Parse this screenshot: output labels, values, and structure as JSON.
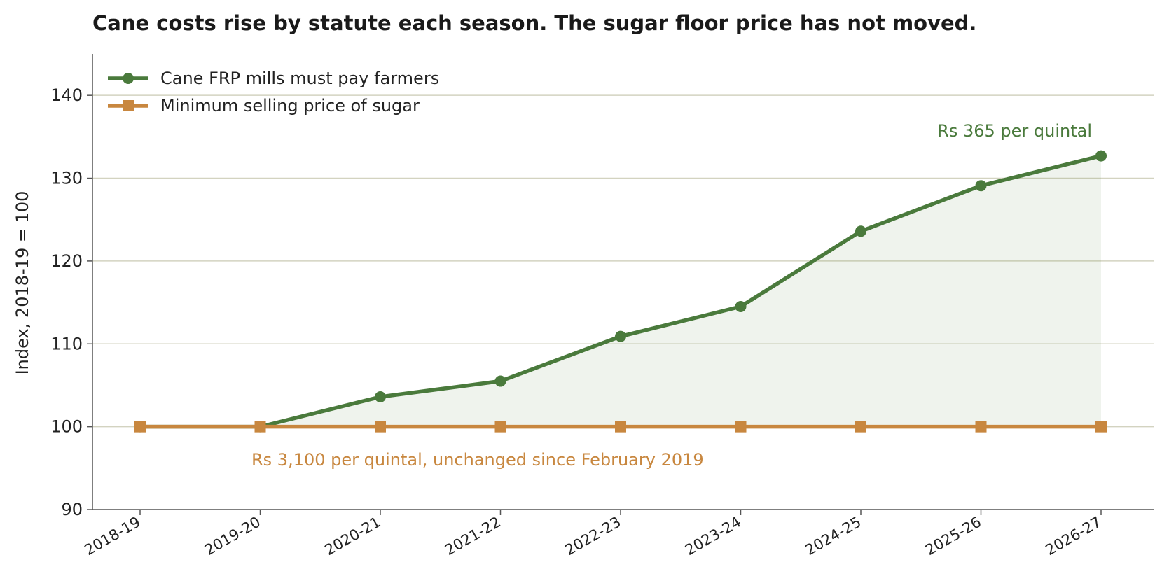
{
  "chart_data": {
    "type": "line",
    "title": "Cane costs rise by statute each season. The sugar floor price has not moved.",
    "xlabel": "",
    "ylabel": "Index, 2018-19 = 100",
    "categories": [
      "2018-19",
      "2019-20",
      "2020-21",
      "2021-22",
      "2022-23",
      "2023-24",
      "2024-25",
      "2025-26",
      "2026-27"
    ],
    "ylim": [
      90,
      145
    ],
    "yticks": [
      90,
      100,
      110,
      120,
      130,
      140
    ],
    "grid": "horizontal",
    "legend_position": "top-left",
    "series": [
      {
        "name": "Cane FRP mills must pay farmers",
        "values": [
          100,
          100,
          103.6,
          105.5,
          110.9,
          114.5,
          123.6,
          129.1,
          132.7
        ],
        "color": "#4a7a3c",
        "marker": "circle",
        "fill_to_baseline": true
      },
      {
        "name": "Minimum selling price of sugar",
        "values": [
          100,
          100,
          100,
          100,
          100,
          100,
          100,
          100,
          100
        ],
        "color": "#c8873f",
        "marker": "square"
      }
    ],
    "annotations": [
      {
        "text": "Rs 365 per quintal",
        "series": 0,
        "color": "#4a7a3c"
      },
      {
        "text": "Rs 3,100 per quintal, unchanged since February 2019",
        "series": 1,
        "color": "#c8873f"
      }
    ]
  }
}
